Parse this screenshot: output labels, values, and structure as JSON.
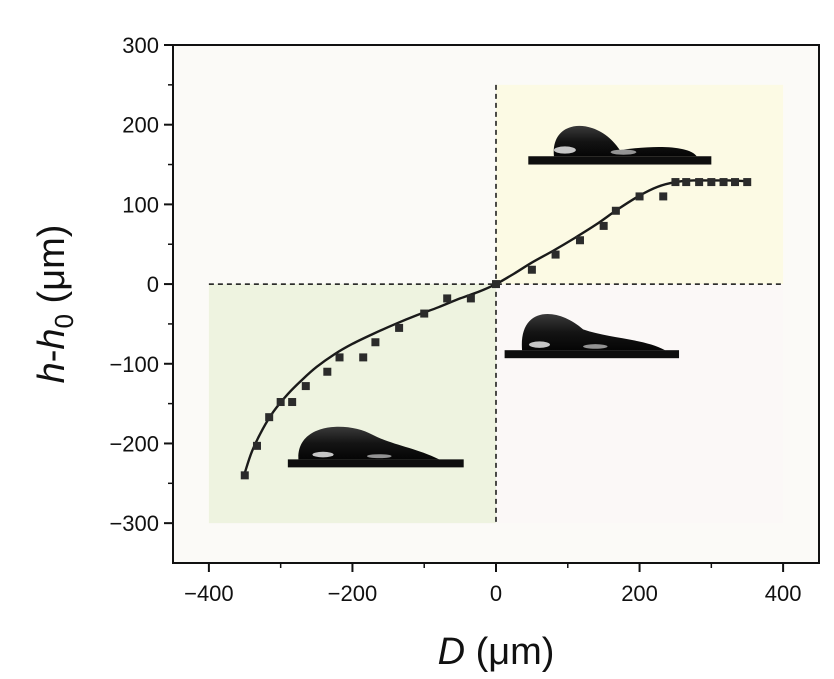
{
  "chart_data": {
    "type": "scatter",
    "xlabel_symbol": "D",
    "xlabel_unit": " (μm)",
    "ylabel_symbol_a": "h",
    "ylabel_dash": "-",
    "ylabel_symbol_b": "h",
    "ylabel_subscript": "0",
    "ylabel_unit": " (μm)",
    "xlim": [
      -450,
      450
    ],
    "ylim": [
      -350,
      300
    ],
    "xticks": [
      -400,
      -200,
      0,
      200,
      400
    ],
    "yticks": [
      300,
      200,
      100,
      0,
      -100,
      -200,
      -300
    ],
    "xtick_labels": [
      "−400",
      "−200",
      "0",
      "200",
      "400"
    ],
    "ytick_labels": [
      "300",
      "200",
      "100",
      "0",
      "−100",
      "−200",
      "−300"
    ],
    "grid": false,
    "colors": {
      "plot_background": "#fbfaf7",
      "lower_left_region": "#eef3e0",
      "upper_right_region": "#fcfae4",
      "lower_right_region": "#fbf8f7",
      "markers": "#2b2b2b",
      "fit_line": "#1a1a1a"
    },
    "shaded_regions": [
      {
        "x": [
          -400,
          0
        ],
        "y": [
          -300,
          0
        ],
        "color": "#eef3e0"
      },
      {
        "x": [
          0,
          400
        ],
        "y": [
          0,
          250
        ],
        "color": "#fcfae4"
      },
      {
        "x": [
          0,
          400
        ],
        "y": [
          -300,
          0
        ],
        "color": "#fbf8f7"
      }
    ],
    "reference_lines": [
      {
        "orientation": "horizontal",
        "value": 0,
        "from": -400,
        "to": 400,
        "style": "dashed"
      },
      {
        "orientation": "vertical",
        "value": 0,
        "from": -300,
        "to": 250,
        "style": "dashed"
      }
    ],
    "series": [
      {
        "kind": "points",
        "x": [
          -350,
          -333,
          -316,
          -300,
          -284,
          -265,
          -235,
          -218,
          -185,
          -168,
          -135,
          -100,
          -68,
          -35,
          0,
          50,
          83,
          117,
          150,
          167,
          200,
          233,
          250,
          265,
          283,
          300,
          317,
          333,
          350
        ],
        "y": [
          -240,
          -203,
          -167,
          -148,
          -148,
          -128,
          -110,
          -92,
          -92,
          -73,
          -55,
          -37,
          -18,
          -18,
          0,
          18,
          37,
          55,
          73,
          92,
          110,
          110,
          128,
          128,
          128,
          128,
          128,
          128,
          128
        ]
      },
      {
        "kind": "fit",
        "x": [
          -350,
          -340,
          -325,
          -310,
          -290,
          -270,
          -250,
          -225,
          -200,
          -170,
          -140,
          -110,
          -80,
          -50,
          -25,
          0,
          25,
          50,
          80,
          110,
          140,
          170,
          200,
          225,
          250,
          275,
          300,
          325,
          350
        ],
        "y": [
          -237,
          -210,
          -182,
          -160,
          -138,
          -120,
          -104,
          -88,
          -75,
          -62,
          -50,
          -39,
          -29,
          -18,
          -10,
          0,
          13,
          27,
          42,
          58,
          75,
          94,
          111,
          122,
          128,
          130,
          130,
          130,
          129
        ]
      }
    ],
    "insets": [
      {
        "name": "droplet-upper-right",
        "x": [
          45,
          300
        ],
        "y": [
          150,
          215
        ]
      },
      {
        "name": "droplet-lower-right",
        "x": [
          12,
          255
        ],
        "y": [
          -93,
          -35
        ]
      },
      {
        "name": "droplet-lower-left",
        "x": [
          -290,
          -45
        ],
        "y": [
          -230,
          -180
        ]
      }
    ]
  }
}
